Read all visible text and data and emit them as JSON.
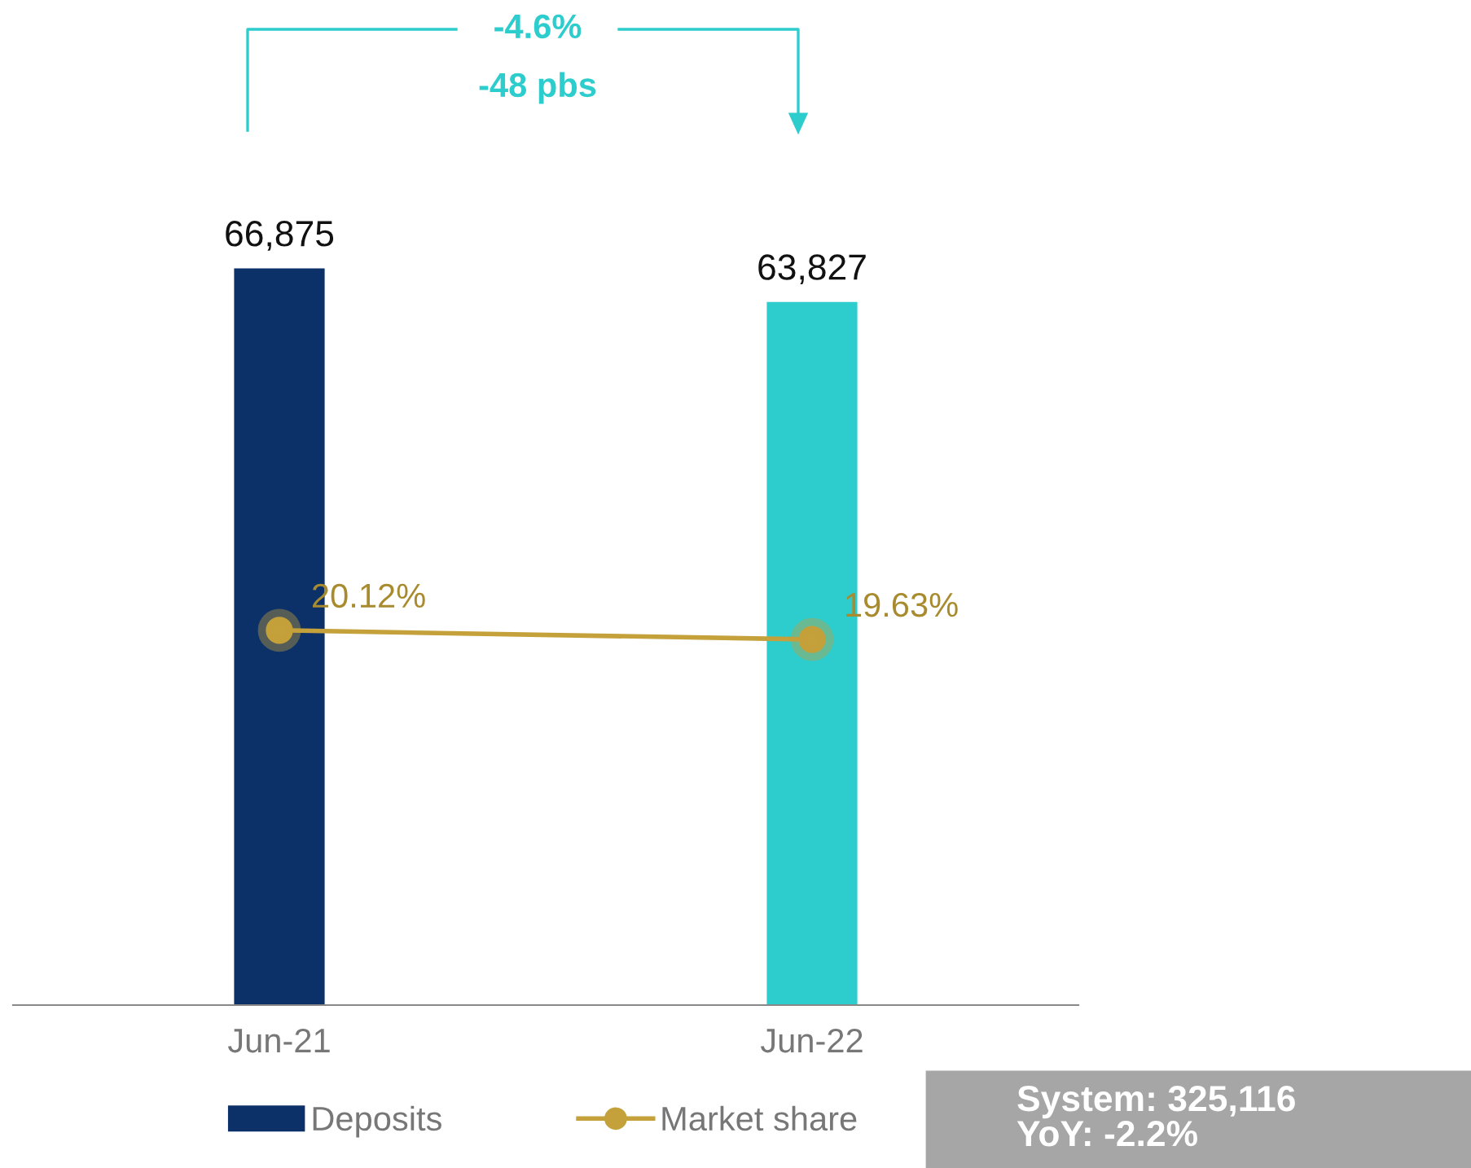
{
  "chart_data": {
    "type": "bar",
    "categories": [
      "Jun-21",
      "Jun-22"
    ],
    "series": [
      {
        "name": "Deposits",
        "color": "#0c3168",
        "colors": [
          "#0c3168",
          "#2dcccd"
        ],
        "values": [
          66875,
          63827
        ],
        "value_labels": [
          "66,875",
          "63,827"
        ]
      },
      {
        "name": "Market share",
        "type": "line",
        "axis": "y2",
        "color": "#c4a13a",
        "marker": "circle",
        "values": [
          20.12,
          19.63
        ],
        "value_labels": [
          "20.12%",
          "19.63%"
        ]
      }
    ],
    "annotations": [
      "-4.6%",
      "-48 pbs",
      "System: 325,116\nYoY: -2.2%"
    ],
    "legend": "bottom",
    "grid": false,
    "tick_labels": "x"
  }
}
